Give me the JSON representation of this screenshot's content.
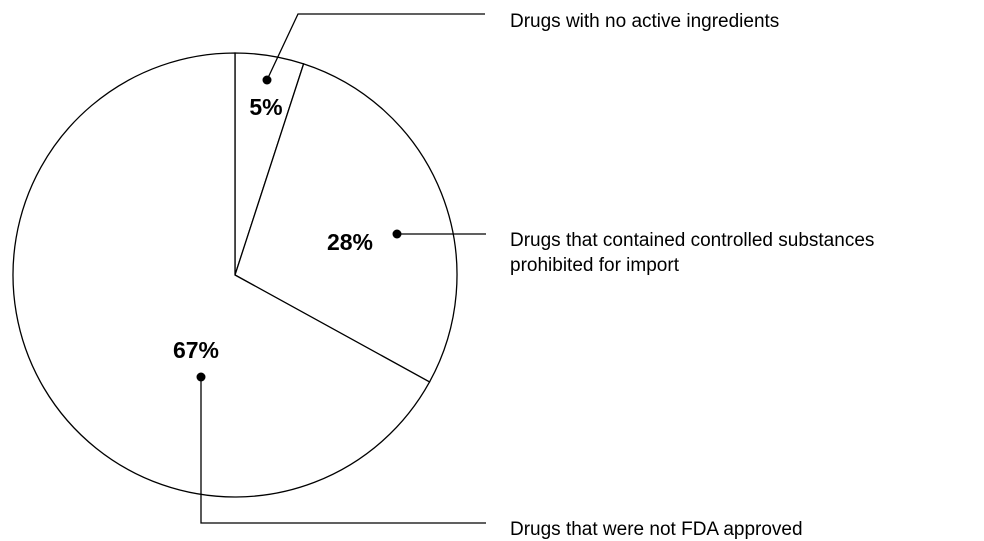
{
  "chart_data": {
    "type": "pie",
    "title": "",
    "slices": [
      {
        "value": 5,
        "pct_label": "5%",
        "label_lines": [
          "Drugs with no active ingredients"
        ]
      },
      {
        "value": 28,
        "pct_label": "28%",
        "label_lines": [
          "Drugs that contained controlled substances",
          "prohibited for import"
        ]
      },
      {
        "value": 67,
        "pct_label": "67%",
        "label_lines": [
          "Drugs that were not FDA approved"
        ]
      }
    ],
    "legend": "callout labels to the right"
  }
}
